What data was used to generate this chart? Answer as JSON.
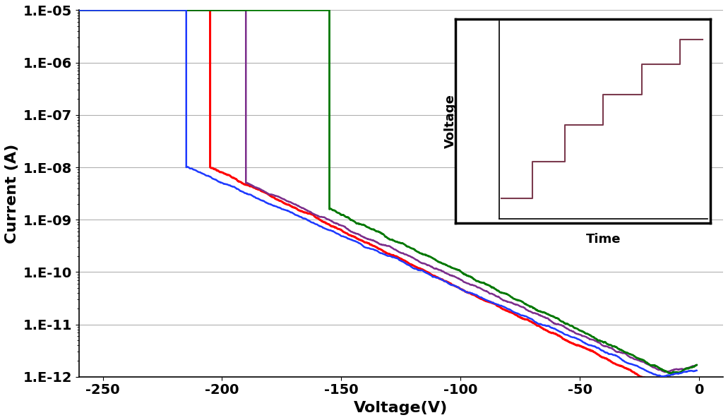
{
  "title": "",
  "xlabel": "Voltage(V)",
  "ylabel": "Current (A)",
  "xlim": [
    -260,
    10
  ],
  "xticks": [
    -250,
    -200,
    -150,
    -100,
    -50,
    0
  ],
  "ytick_labels": [
    "1.E-12",
    "1.E-11",
    "1.E-10",
    "1.E-09",
    "1.E-08",
    "1.E-07",
    "1.E-06",
    "1.E-05"
  ],
  "ytick_values": [
    1e-12,
    1e-11,
    1e-10,
    1e-09,
    1e-08,
    1e-07,
    1e-06,
    1e-05
  ],
  "bg_color": "#ffffff",
  "grid_color": "#b0b0b0",
  "inset_step_color": "#7b3b4e",
  "line_colors": {
    "blue": "#1e3aff",
    "red": "#ff0000",
    "purple": "#7b2d8b",
    "green": "#007700"
  },
  "breakdown_blue": -215,
  "breakdown_red": -205,
  "breakdown_purple": -190,
  "breakdown_green": -155
}
